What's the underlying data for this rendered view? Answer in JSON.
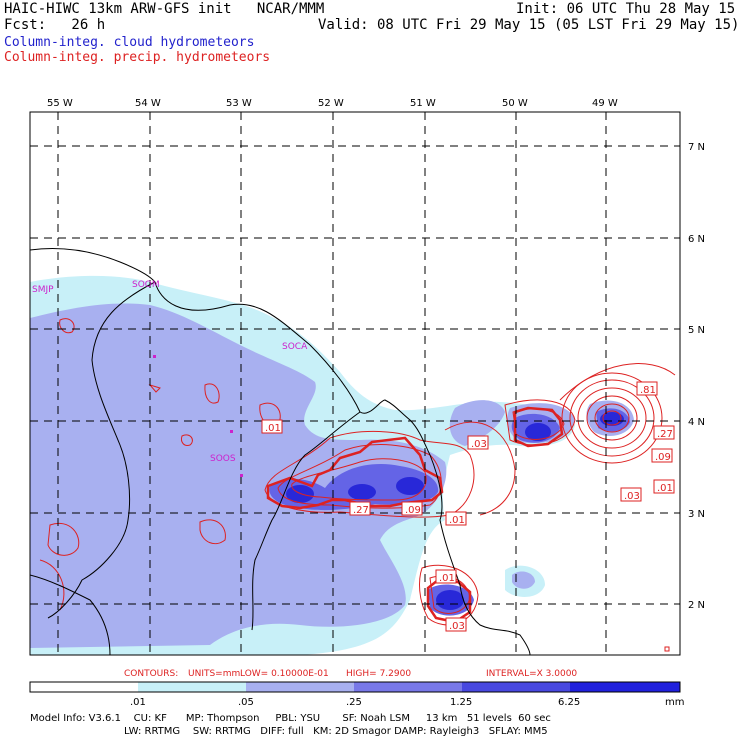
{
  "header": {
    "line1_left": "HAIC-HIWC 13km ARW-GFS init   NCAR/MMM",
    "line1_right": "Init: 06 UTC Thu 28 May 15",
    "line2_left": "Fcst:   26 h",
    "line2_right": "Valid: 08 UTC Fri 29 May 15 (05 LST Fri 29 May 15)",
    "line3": "Column-integ. cloud hydrometeors",
    "line4": "Column-integ. precip. hydrometeors"
  },
  "map": {
    "lon_labels": [
      "55 W",
      "54 W",
      "53 W",
      "52 W",
      "51 W",
      "50 W",
      "49 W"
    ],
    "lat_labels": [
      "7 N",
      "6 N",
      "5 N",
      "4 N",
      "3 N",
      "2 N"
    ],
    "stations": [
      "SMJP",
      "SOOM",
      "SOCA",
      "SOOS"
    ],
    "contour_labels": [
      ".81",
      ".27",
      ".09",
      ".01",
      ".03",
      ".01",
      ".03",
      ".27",
      ".09",
      ".01",
      ".01",
      ".03"
    ],
    "colors": {
      "cloud_light": "#c8f0f8",
      "cloud_mid": "#a8b0f0",
      "cloud_dark": "#4848e0",
      "precip": "#dd2222",
      "station": "#cc22cc"
    }
  },
  "contour_info": {
    "contours": "CONTOURS:",
    "units": "UNITS=mm",
    "low": "LOW= 0.10000E-01",
    "high": "HIGH=  7.2900",
    "interval": "INTERVAL=X  3.0000"
  },
  "colorbar": {
    "labels": [
      ".01",
      ".05",
      ".25",
      "1.25",
      "6.25"
    ],
    "unit": "mm",
    "colors": [
      "#ffffff",
      "#c8f0f8",
      "#a8b0f0",
      "#7878e8",
      "#4848e0",
      "#2020dd"
    ]
  },
  "model_info": {
    "line1": "Model Info: V3.6.1    CU: KF      MP: Thompson     PBL: YSU       SF: Noah LSM     13 km   51 levels  60 sec",
    "line2": "LW: RRTMG    SW: RRTMG   DIFF: full   KM: 2D Smagor DAMP: Rayleigh3   SFLAY: MM5"
  }
}
